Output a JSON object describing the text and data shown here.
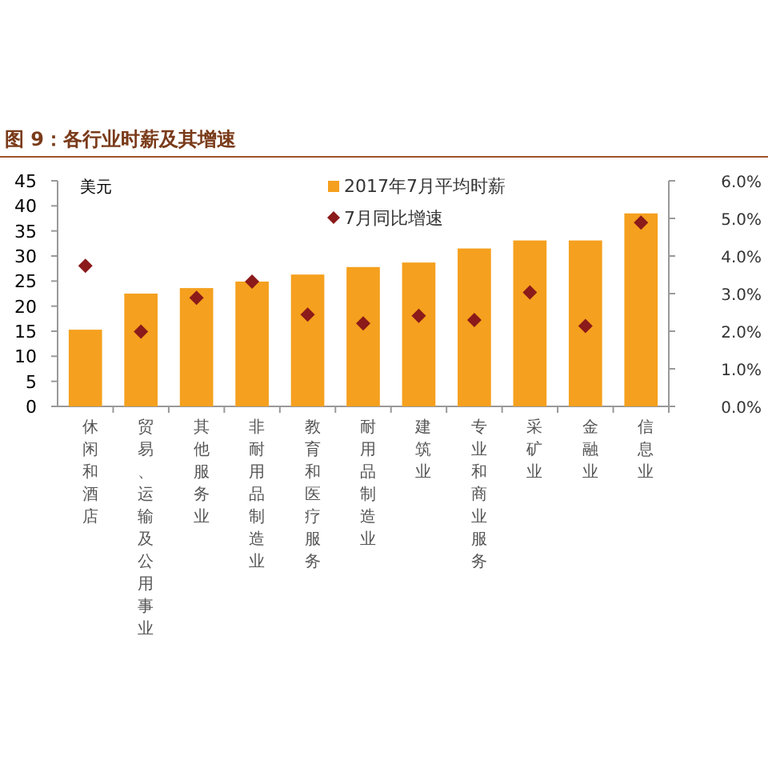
{
  "chart_data": {
    "type": "bar",
    "title": "图 9：各行业时薪及其增速",
    "ylabel": "美元",
    "categories": [
      "休闲和酒店",
      "贸易、运输及公用事业",
      "其他服务业",
      "非耐用品制造业",
      "教育和医疗服务",
      "耐用品制造业",
      "建筑业",
      "专业和商业服务",
      "采矿业",
      "金融业",
      "信息业"
    ],
    "series": [
      {
        "name": "2017年7月平均时薪",
        "type": "bar",
        "color": "#f5a01e",
        "values": [
          15.3,
          22.5,
          23.6,
          24.9,
          26.3,
          27.8,
          28.7,
          31.5,
          33.1,
          33.1,
          38.5
        ]
      },
      {
        "name": "7月同比增速",
        "type": "scatter",
        "axis": "y2",
        "marker": "diamond",
        "color": "#8b1a1a",
        "values": [
          3.74,
          1.99,
          2.89,
          3.32,
          2.44,
          2.21,
          2.41,
          2.3,
          3.03,
          2.14,
          4.89
        ]
      }
    ],
    "ylim": [
      0,
      45
    ],
    "yticks": [
      0,
      5,
      10,
      15,
      20,
      25,
      30,
      35,
      40,
      45
    ],
    "y2lim": [
      0,
      6
    ],
    "y2ticks": [
      {
        "value": 0,
        "label": "0.0%"
      },
      {
        "value": 1,
        "label": "1.0%"
      },
      {
        "value": 2,
        "label": "2.0%"
      },
      {
        "value": 3,
        "label": "3.0%"
      },
      {
        "value": 4,
        "label": "4.0%"
      },
      {
        "value": 5,
        "label": "5.0%"
      },
      {
        "value": 6,
        "label": "6.0%"
      }
    ],
    "legend": "top"
  }
}
